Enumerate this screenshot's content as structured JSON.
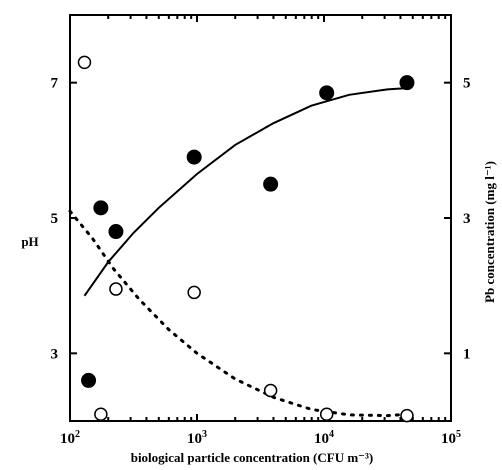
{
  "chart_data": {
    "type": "scatter",
    "title": "",
    "xlabel": "biological particle concentration (CFU m⁻³)",
    "ylabel": "pH",
    "y2label": "Pb concentration (mg l⁻¹)",
    "xscale": "log",
    "xlim": [
      100,
      100000
    ],
    "ylim": [
      2.0,
      8.0
    ],
    "y2lim": [
      0,
      6
    ],
    "x_ticks": [
      {
        "value": 100,
        "base": "10",
        "exp": "2"
      },
      {
        "value": 1000,
        "base": "10",
        "exp": "3"
      },
      {
        "value": 10000,
        "base": "10",
        "exp": "4"
      },
      {
        "value": 100000,
        "base": "10",
        "exp": "5"
      }
    ],
    "y_ticks": [
      3,
      5,
      7
    ],
    "y2_ticks": [
      1,
      3,
      5
    ],
    "grid": false,
    "series": [
      {
        "axis": "left",
        "marker": "filled-circle",
        "points": [
          {
            "x": 140,
            "y": 2.6
          },
          {
            "x": 175,
            "y": 5.15
          },
          {
            "x": 230,
            "y": 4.8
          },
          {
            "x": 950,
            "y": 5.9
          },
          {
            "x": 3800,
            "y": 5.5
          },
          {
            "x": 10500,
            "y": 6.85
          },
          {
            "x": 45000,
            "y": 7.0
          }
        ]
      },
      {
        "axis": "right",
        "marker": "open-circle",
        "points": [
          {
            "x": 130,
            "y": 5.3
          },
          {
            "x": 175,
            "y": 0.1
          },
          {
            "x": 230,
            "y": 1.95
          },
          {
            "x": 950,
            "y": 1.9
          },
          {
            "x": 3800,
            "y": 0.45
          },
          {
            "x": 10500,
            "y": 0.1
          },
          {
            "x": 45000,
            "y": 0.08
          }
        ]
      }
    ],
    "fits": [
      {
        "axis": "left",
        "style": "solid",
        "points": [
          {
            "x": 130,
            "y": 3.85
          },
          {
            "x": 200,
            "y": 4.35
          },
          {
            "x": 316,
            "y": 4.78
          },
          {
            "x": 500,
            "y": 5.15
          },
          {
            "x": 1000,
            "y": 5.65
          },
          {
            "x": 2000,
            "y": 6.08
          },
          {
            "x": 3980,
            "y": 6.4
          },
          {
            "x": 7940,
            "y": 6.66
          },
          {
            "x": 15800,
            "y": 6.82
          },
          {
            "x": 31600,
            "y": 6.9
          },
          {
            "x": 45000,
            "y": 6.92
          }
        ]
      },
      {
        "axis": "right",
        "style": "dotted",
        "points": [
          {
            "x": 100,
            "y": 3.1
          },
          {
            "x": 150,
            "y": 2.7
          },
          {
            "x": 220,
            "y": 2.25
          },
          {
            "x": 350,
            "y": 1.8
          },
          {
            "x": 600,
            "y": 1.35
          },
          {
            "x": 1000,
            "y": 1.0
          },
          {
            "x": 2000,
            "y": 0.62
          },
          {
            "x": 4000,
            "y": 0.35
          },
          {
            "x": 8000,
            "y": 0.17
          },
          {
            "x": 16000,
            "y": 0.09
          },
          {
            "x": 32000,
            "y": 0.08
          },
          {
            "x": 45000,
            "y": 0.1
          }
        ]
      }
    ]
  }
}
